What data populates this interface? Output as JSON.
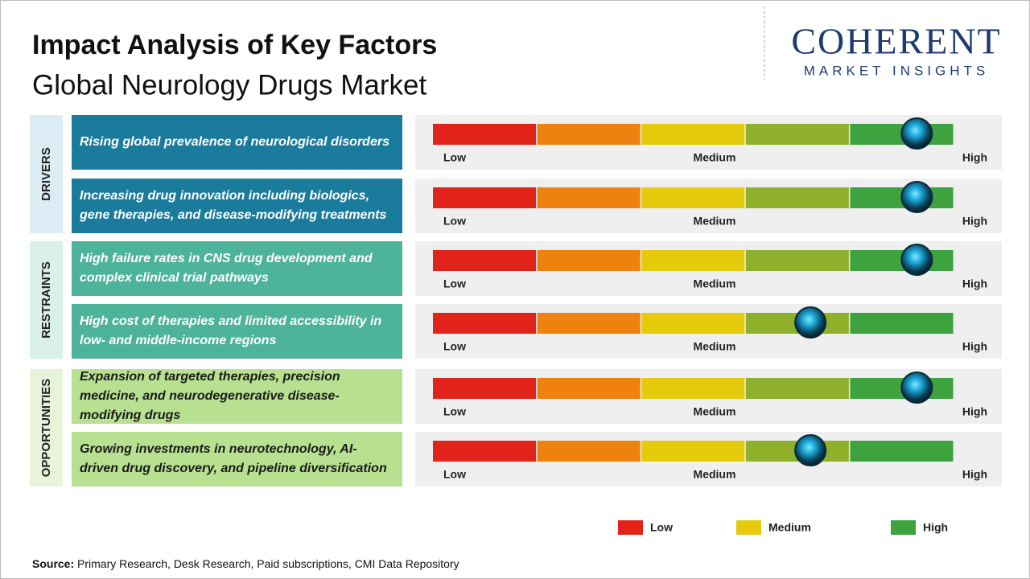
{
  "header": {
    "title": "Impact Analysis of Key Factors",
    "subtitle": "Global Neurology Drugs Market"
  },
  "logo": {
    "name": "COHERENT",
    "tagline": "MARKET INSIGHTS"
  },
  "groups": [
    {
      "label": "DRIVERS",
      "box_color": "#1b7b9c",
      "text_color": "#ffffff",
      "band_color": "#dcecf5",
      "rows": [
        {
          "text": "Rising global prevalence of neurological disorders",
          "impact": 4.64
        },
        {
          "text": "Increasing drug innovation including biologics, gene therapies, and disease-modifying treatments",
          "impact": 4.64
        }
      ]
    },
    {
      "label": "RESTRAINTS",
      "box_color": "#4db39b",
      "text_color": "#ffffff",
      "band_color": "#daf0ea",
      "rows": [
        {
          "text": "High failure rates in CNS drug development and complex clinical trial pathways",
          "impact": 4.64
        },
        {
          "text": "High cost of therapies and limited accessibility in low- and middle-income regions",
          "impact": 3.62
        }
      ]
    },
    {
      "label": "OPPORTUNITIES",
      "box_color": "#b7e190",
      "text_color": "#1a1a1a",
      "band_color": "#e7f4da",
      "rows": [
        {
          "text": "Expansion of targeted therapies, precision medicine, and neurodegenerative disease-modifying drugs",
          "impact": 4.64
        },
        {
          "text": "Growing investments in neurotechnology, AI-driven drug discovery, and pipeline diversification",
          "impact": 3.62
        }
      ]
    }
  ],
  "gauge": {
    "low": "Low",
    "medium": "Medium",
    "high": "High",
    "colors": [
      "#e2231a",
      "#ef820f",
      "#e6cb0c",
      "#8fb02a",
      "#3ea33e"
    ]
  },
  "legend": [
    {
      "label": "Low",
      "color": "#e2231a"
    },
    {
      "label": "Medium",
      "color": "#e6cb0c"
    },
    {
      "label": "High",
      "color": "#3ea33e"
    }
  ],
  "source": {
    "label": "Source:",
    "text": "Primary Research, Desk Research, Paid subscriptions, CMI Data Repository"
  }
}
